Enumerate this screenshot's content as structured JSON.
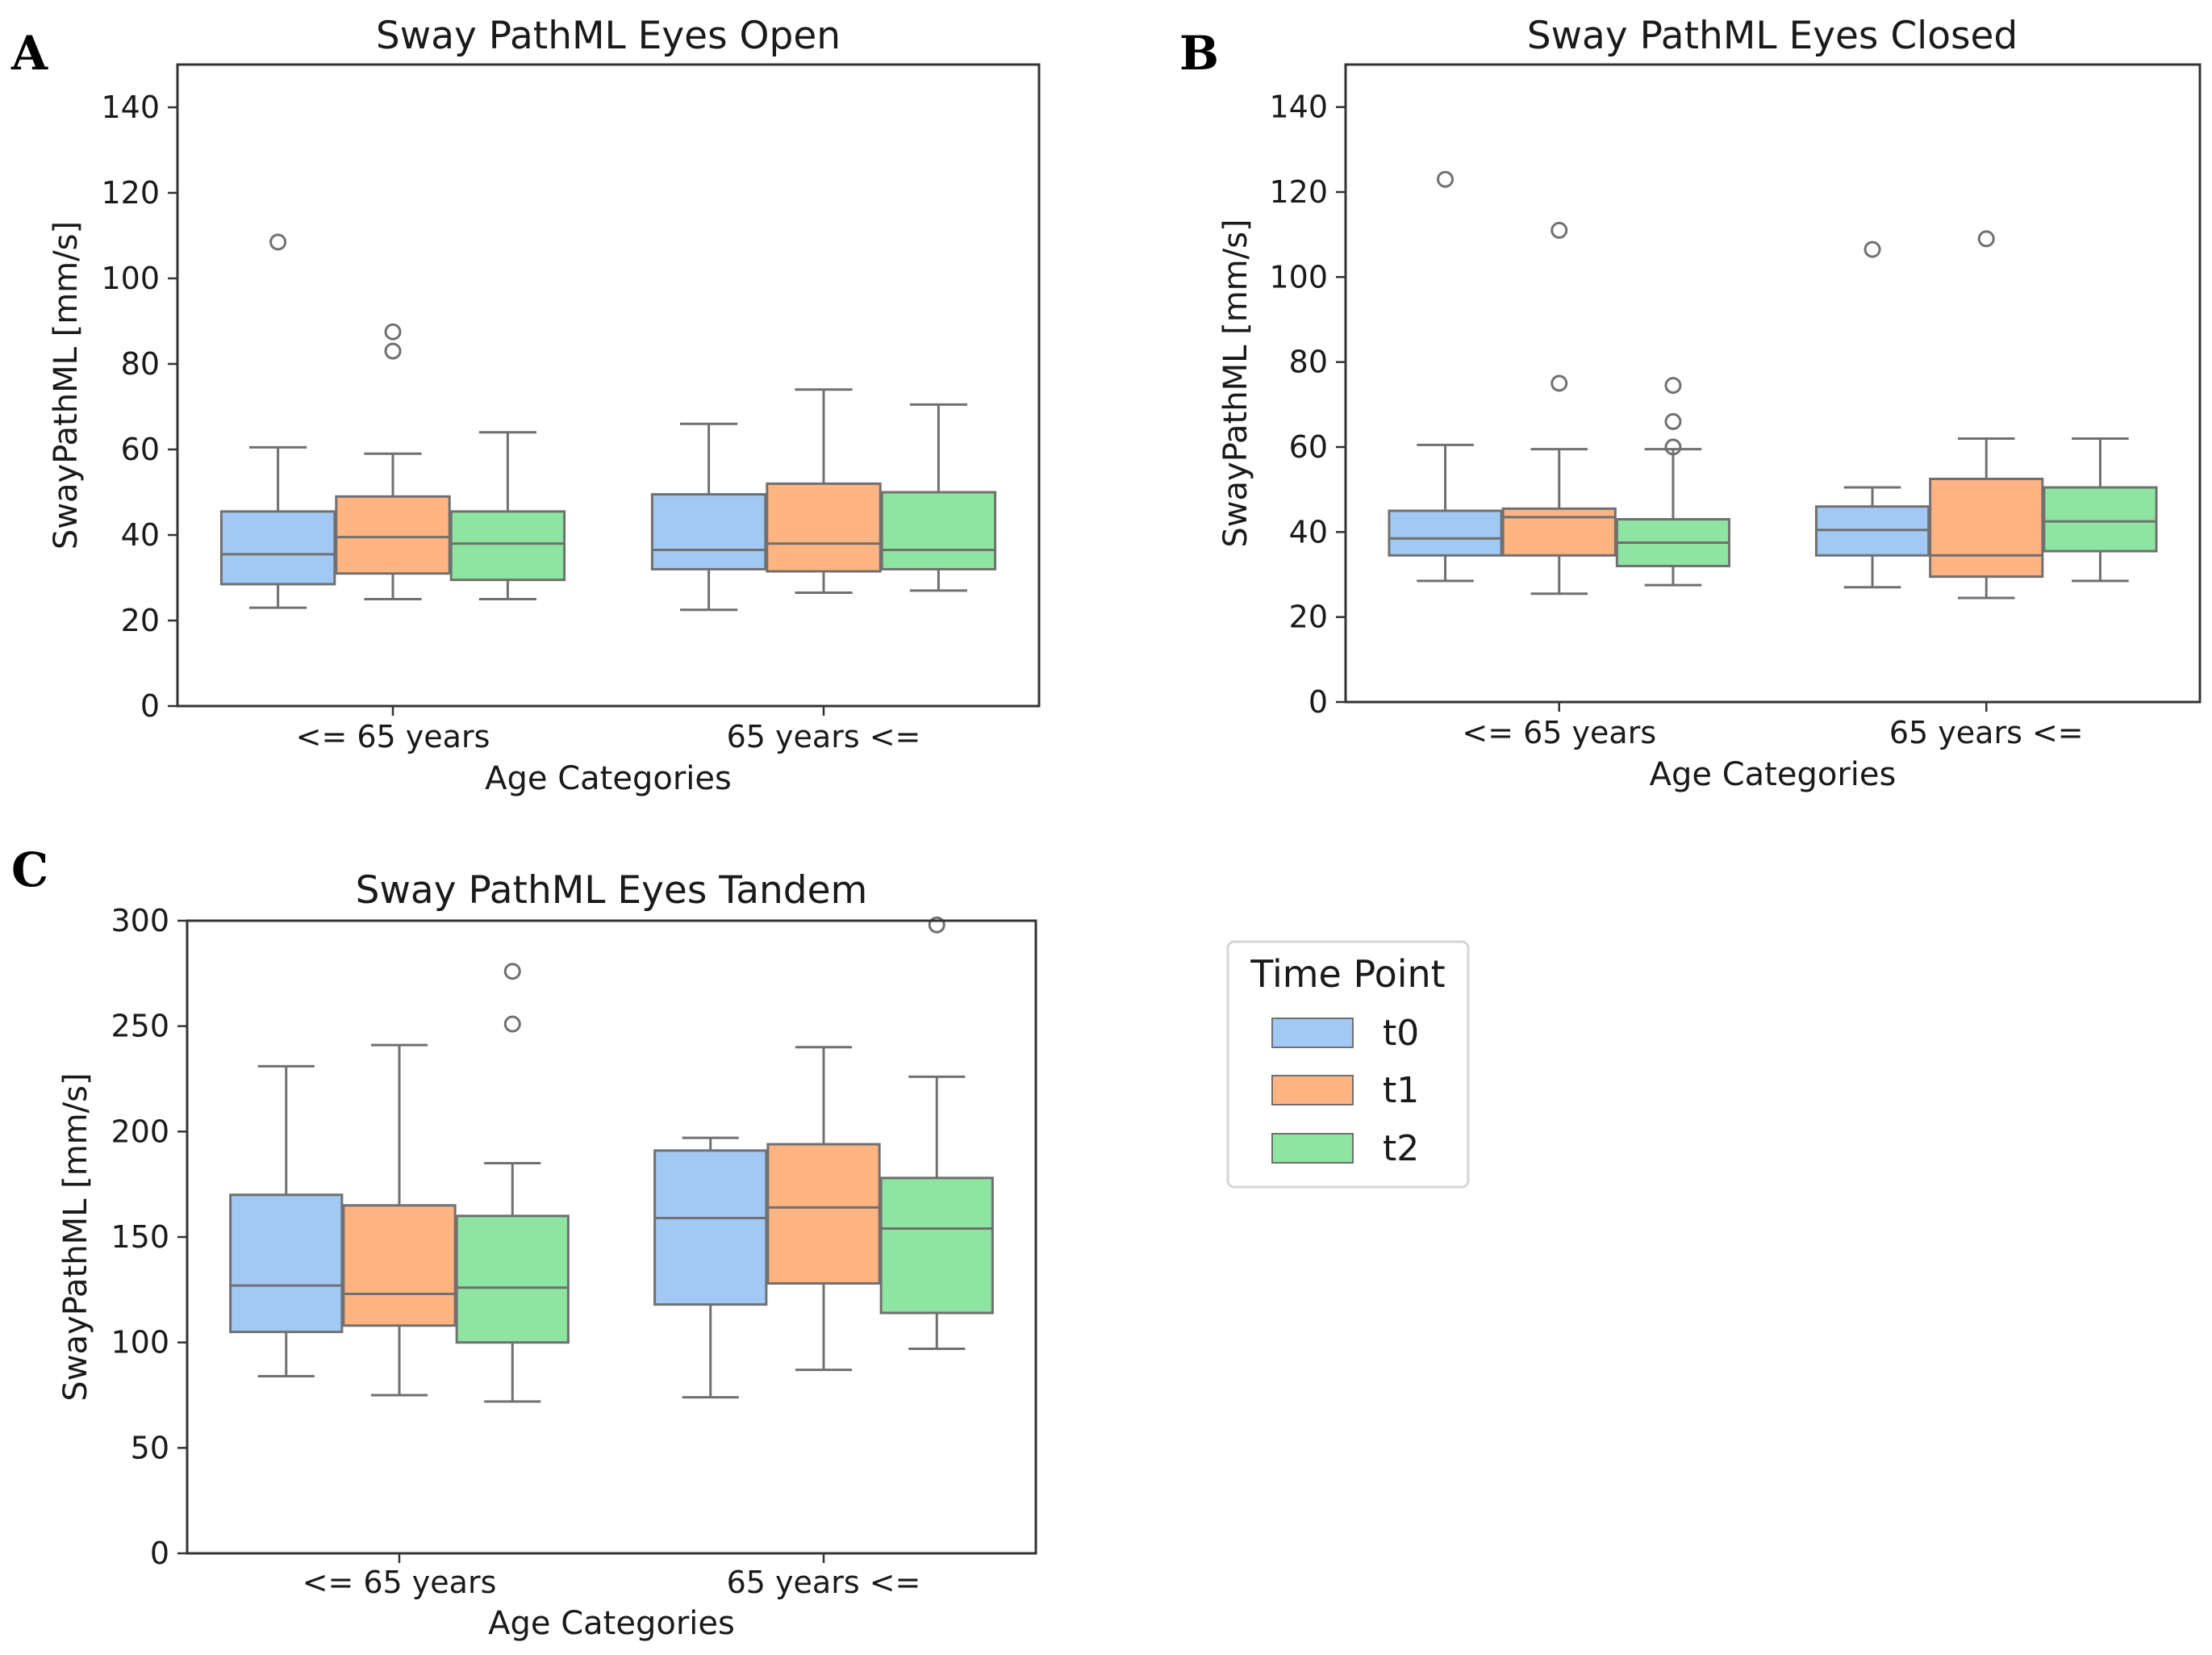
{
  "colors": {
    "t0": "#a1c9f4",
    "t1": "#ffb482",
    "t2": "#8de5a1",
    "line": "#707070",
    "frame": "#333333"
  },
  "legend": {
    "title": "Time Point",
    "items": [
      {
        "label": "t0",
        "color": "#a1c9f4"
      },
      {
        "label": "t1",
        "color": "#ffb482"
      },
      {
        "label": "t2",
        "color": "#8de5a1"
      }
    ]
  },
  "chart_data": [
    {
      "panel": "A",
      "type": "box",
      "title": "Sway PathML Eyes Open",
      "xlabel": "Age Categories",
      "ylabel": "SwayPathML [mm/s]",
      "ylim": [
        0,
        150
      ],
      "yticks": [
        0,
        20,
        40,
        60,
        80,
        100,
        120,
        140
      ],
      "categories": [
        "<= 65 years",
        "65 years <="
      ],
      "series": [
        {
          "name": "t0",
          "boxes": [
            {
              "whislo": 23,
              "q1": 28.5,
              "med": 35.5,
              "q3": 45.5,
              "whishi": 60.5,
              "fliers": [
                108.5
              ]
            },
            {
              "whislo": 22.5,
              "q1": 32,
              "med": 36.5,
              "q3": 49.5,
              "whishi": 66,
              "fliers": []
            }
          ]
        },
        {
          "name": "t1",
          "boxes": [
            {
              "whislo": 25,
              "q1": 31,
              "med": 39.5,
              "q3": 49,
              "whishi": 59,
              "fliers": [
                87.5,
                83
              ]
            },
            {
              "whislo": 26.5,
              "q1": 31.5,
              "med": 38,
              "q3": 52,
              "whishi": 74,
              "fliers": []
            }
          ]
        },
        {
          "name": "t2",
          "boxes": [
            {
              "whislo": 25,
              "q1": 29.5,
              "med": 38,
              "q3": 45.5,
              "whishi": 64,
              "fliers": []
            },
            {
              "whislo": 27,
              "q1": 32,
              "med": 36.5,
              "q3": 50,
              "whishi": 70.5,
              "fliers": []
            }
          ]
        }
      ]
    },
    {
      "panel": "B",
      "type": "box",
      "title": "Sway PathML Eyes Closed",
      "xlabel": "Age Categories",
      "ylabel": "SwayPathML [mm/s]",
      "ylim": [
        0,
        150
      ],
      "yticks": [
        0,
        20,
        40,
        60,
        80,
        100,
        120,
        140
      ],
      "categories": [
        "<= 65 years",
        "65 years <="
      ],
      "series": [
        {
          "name": "t0",
          "boxes": [
            {
              "whislo": 28.5,
              "q1": 34.5,
              "med": 38.5,
              "q3": 45,
              "whishi": 60.5,
              "fliers": [
                123
              ]
            },
            {
              "whislo": 27,
              "q1": 34.5,
              "med": 40.5,
              "q3": 46,
              "whishi": 50.5,
              "fliers": [
                106.5
              ]
            }
          ]
        },
        {
          "name": "t1",
          "boxes": [
            {
              "whislo": 25.5,
              "q1": 34.5,
              "med": 43.5,
              "q3": 45.5,
              "whishi": 59.5,
              "fliers": [
                111,
                75
              ]
            },
            {
              "whislo": 24.5,
              "q1": 29.5,
              "med": 34.5,
              "q3": 52.5,
              "whishi": 62,
              "fliers": [
                109
              ]
            }
          ]
        },
        {
          "name": "t2",
          "boxes": [
            {
              "whislo": 27.5,
              "q1": 32,
              "med": 37.5,
              "q3": 43,
              "whishi": 59.5,
              "fliers": [
                74.5,
                66,
                60
              ]
            },
            {
              "whislo": 28.5,
              "q1": 35.5,
              "med": 42.5,
              "q3": 50.5,
              "whishi": 62,
              "fliers": []
            }
          ]
        }
      ]
    },
    {
      "panel": "C",
      "type": "box",
      "title": "Sway PathML Eyes Tandem",
      "xlabel": "Age Categories",
      "ylabel": "SwayPathML [mm/s]",
      "ylim": [
        0,
        300
      ],
      "yticks": [
        0,
        50,
        100,
        150,
        200,
        250,
        300
      ],
      "categories": [
        "<= 65 years",
        "65 years <="
      ],
      "series": [
        {
          "name": "t0",
          "boxes": [
            {
              "whislo": 84,
              "q1": 105,
              "med": 127,
              "q3": 170,
              "whishi": 231,
              "fliers": []
            },
            {
              "whislo": 74,
              "q1": 118,
              "med": 159,
              "q3": 191,
              "whishi": 197,
              "fliers": []
            }
          ]
        },
        {
          "name": "t1",
          "boxes": [
            {
              "whislo": 75,
              "q1": 108,
              "med": 123,
              "q3": 165,
              "whishi": 241,
              "fliers": []
            },
            {
              "whislo": 87,
              "q1": 128,
              "med": 164,
              "q3": 194,
              "whishi": 240,
              "fliers": []
            }
          ]
        },
        {
          "name": "t2",
          "boxes": [
            {
              "whislo": 72,
              "q1": 100,
              "med": 126,
              "q3": 160,
              "whishi": 185,
              "fliers": [
                276,
                251
              ]
            },
            {
              "whislo": 97,
              "q1": 114,
              "med": 154,
              "q3": 178,
              "whishi": 226,
              "fliers": [
                298
              ]
            }
          ]
        }
      ]
    }
  ]
}
